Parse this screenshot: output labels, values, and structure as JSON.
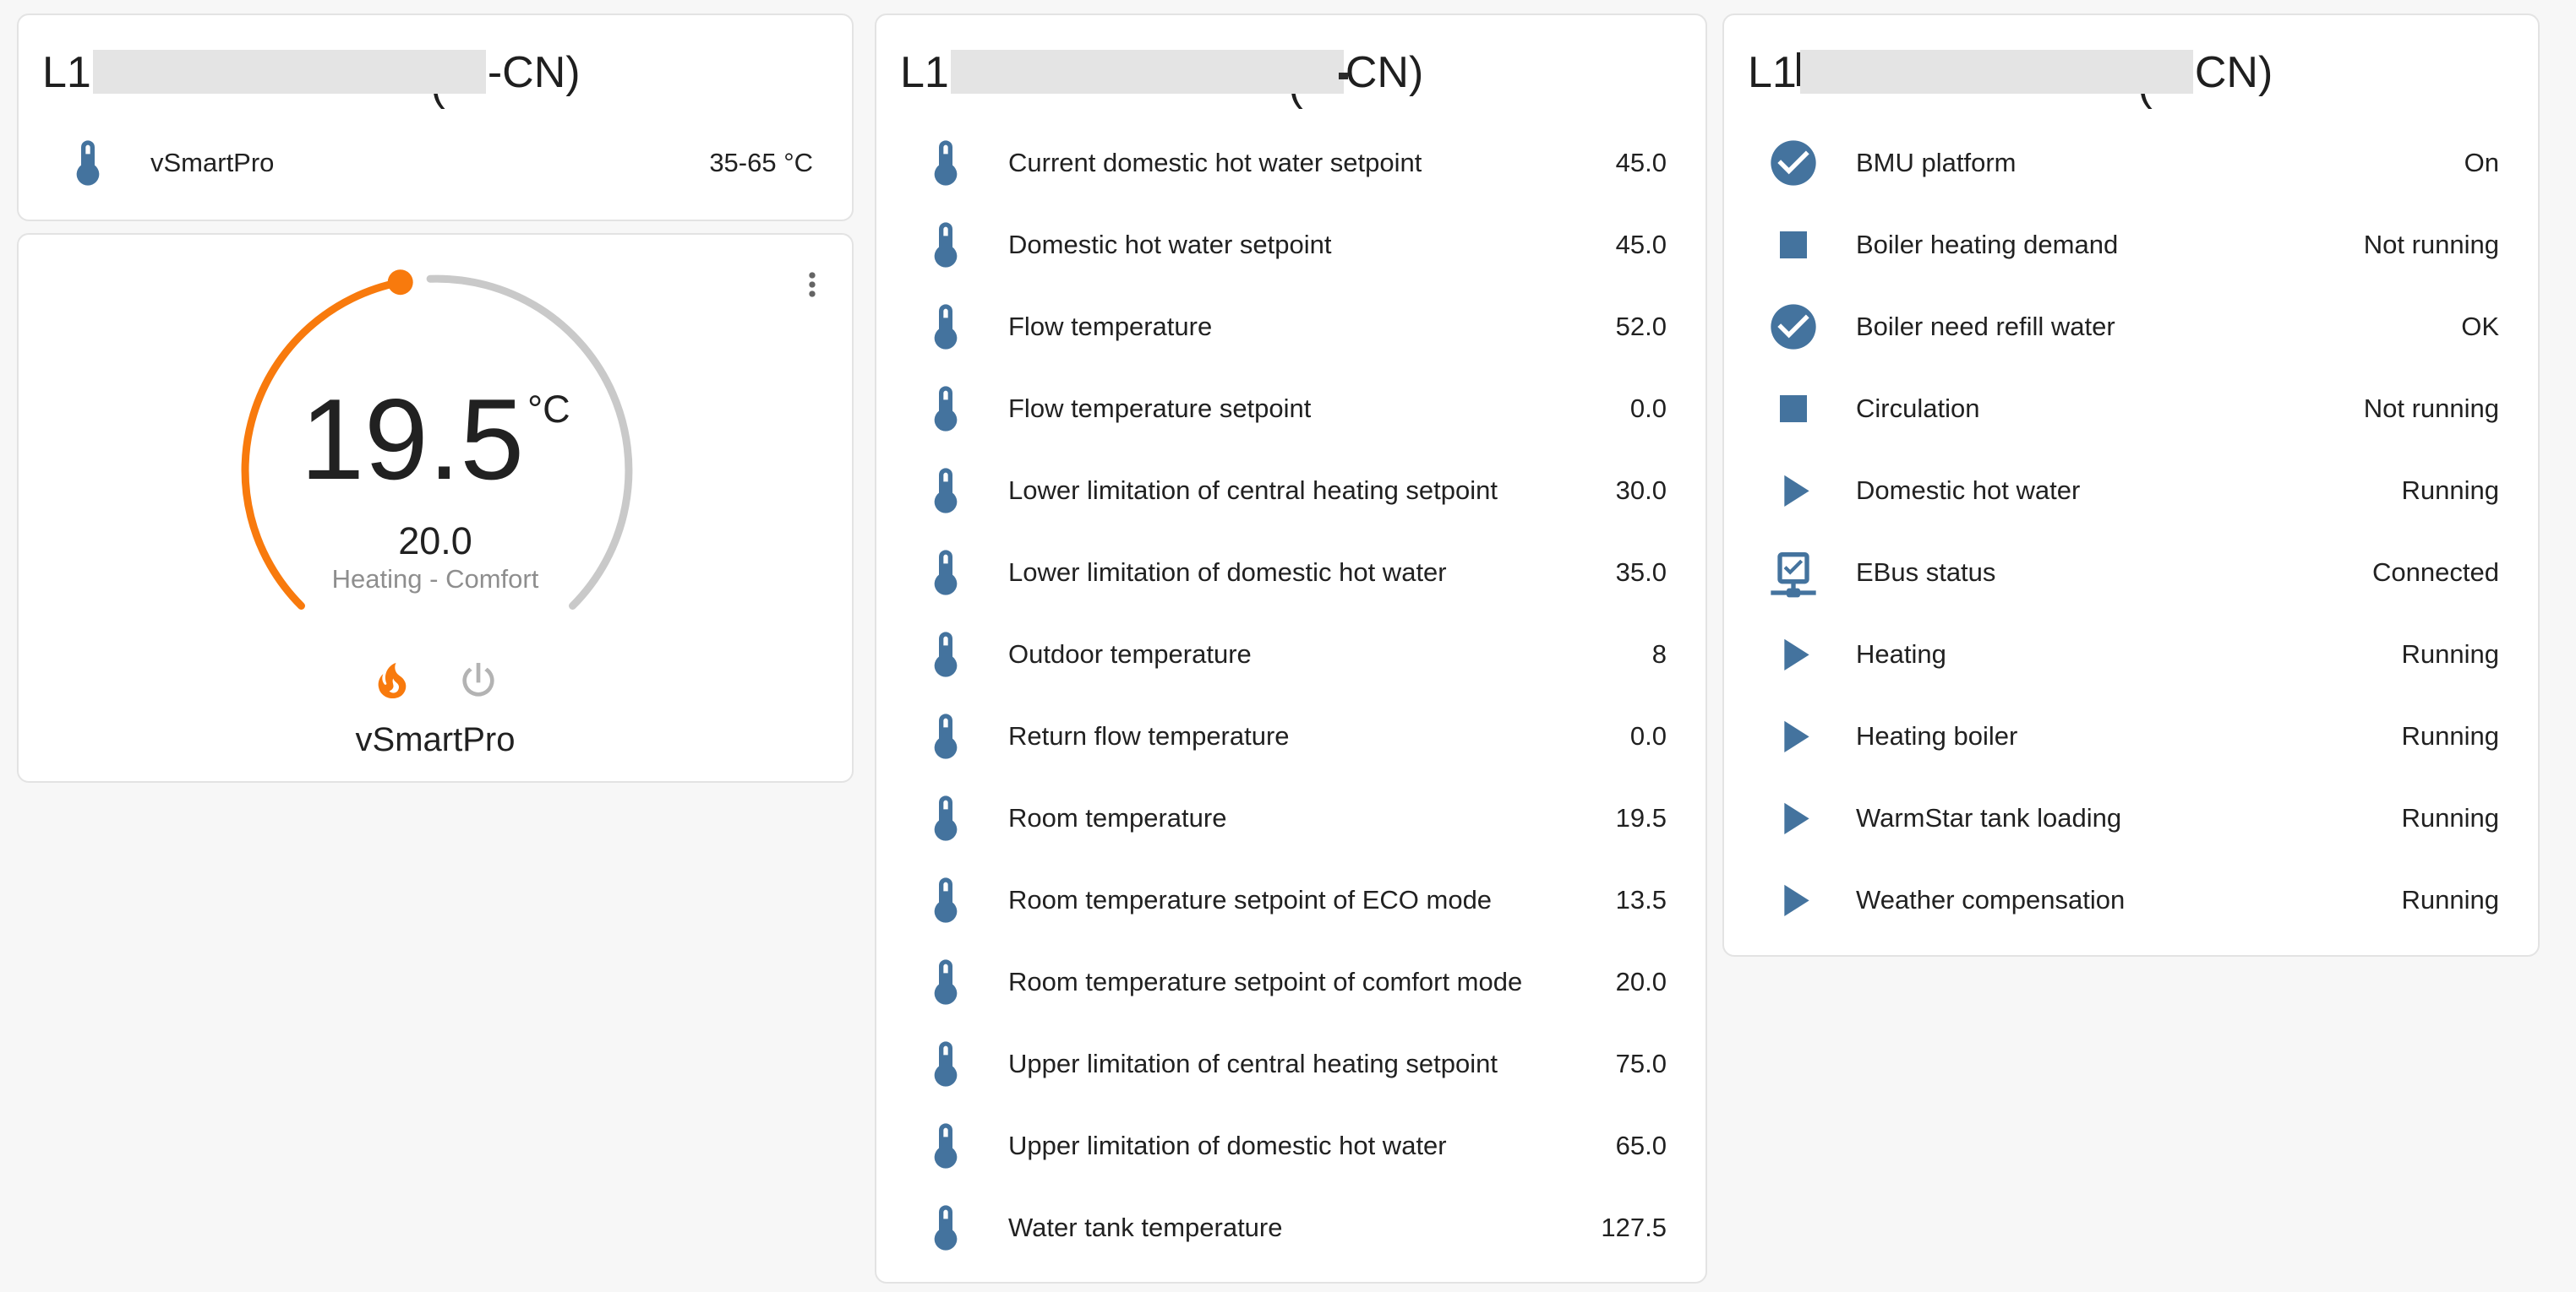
{
  "page": {
    "background": "#f7f7f7"
  },
  "colors": {
    "accent_orange": "#f87a0d",
    "icon_blue": "#44739e",
    "dial_track_gray": "#c9c9c9",
    "inactive_gray": "#b3b3b3",
    "secondary_text_gray": "#8e8e8e",
    "redaction_gray": "#e4e4e4"
  },
  "cards": {
    "summary": {
      "title_prefix": "L1",
      "title_paren": "(",
      "title_suffix": "-CN)",
      "title_redacted": true,
      "rows": [
        {
          "icon": "thermometer-icon",
          "label": "vSmartPro",
          "value": "35-65 °C"
        }
      ]
    },
    "thermostat": {
      "menu_icon": "dots-vertical-icon",
      "current_temperature": "19.5",
      "unit": "°C",
      "target_temperature": "20.0",
      "status": "Heating - Comfort",
      "entity_name": "vSmartPro",
      "modes": [
        {
          "icon": "fire-icon",
          "active": true
        },
        {
          "icon": "power-icon",
          "active": false
        }
      ]
    },
    "sensors": {
      "title_prefix": "L1",
      "title_paren": "(",
      "title_suffix": "CN)",
      "title_redacted": true,
      "rows": [
        {
          "icon": "thermometer-icon",
          "label": "Current domestic hot water setpoint",
          "value": "45.0"
        },
        {
          "icon": "thermometer-icon",
          "label": "Domestic hot water setpoint",
          "value": "45.0"
        },
        {
          "icon": "thermometer-icon",
          "label": "Flow temperature",
          "value": "52.0"
        },
        {
          "icon": "thermometer-icon",
          "label": "Flow temperature setpoint",
          "value": "0.0"
        },
        {
          "icon": "thermometer-icon",
          "label": "Lower limitation of central heating setpoint",
          "value": "30.0"
        },
        {
          "icon": "thermometer-icon",
          "label": "Lower limitation of domestic hot water",
          "value": "35.0"
        },
        {
          "icon": "thermometer-icon",
          "label": "Outdoor temperature",
          "value": "8"
        },
        {
          "icon": "thermometer-icon",
          "label": "Return flow temperature",
          "value": "0.0"
        },
        {
          "icon": "thermometer-icon",
          "label": "Room temperature",
          "value": "19.5"
        },
        {
          "icon": "thermometer-icon",
          "label": "Room temperature setpoint of ECO mode",
          "value": "13.5"
        },
        {
          "icon": "thermometer-icon",
          "label": "Room temperature setpoint of comfort mode",
          "value": "20.0"
        },
        {
          "icon": "thermometer-icon",
          "label": "Upper limitation of central heating setpoint",
          "value": "75.0"
        },
        {
          "icon": "thermometer-icon",
          "label": "Upper limitation of domestic hot water",
          "value": "65.0"
        },
        {
          "icon": "thermometer-icon",
          "label": "Water tank temperature",
          "value": "127.5"
        }
      ]
    },
    "binary_sensors": {
      "title_prefix": "L1",
      "title_paren": "(",
      "title_suffix": "CN)",
      "title_redacted": true,
      "rows": [
        {
          "icon": "check-circle-icon",
          "label": "BMU platform",
          "value": "On"
        },
        {
          "icon": "stop-icon",
          "label": "Boiler heating demand",
          "value": "Not running"
        },
        {
          "icon": "check-circle-icon",
          "label": "Boiler need refill water",
          "value": "OK"
        },
        {
          "icon": "stop-icon",
          "label": "Circulation",
          "value": "Not running"
        },
        {
          "icon": "play-icon",
          "label": "Domestic hot water",
          "value": "Running"
        },
        {
          "icon": "check-network-icon",
          "label": "EBus status",
          "value": "Connected"
        },
        {
          "icon": "play-icon",
          "label": "Heating",
          "value": "Running"
        },
        {
          "icon": "play-icon",
          "label": "Heating boiler",
          "value": "Running"
        },
        {
          "icon": "play-icon",
          "label": "WarmStar tank loading",
          "value": "Running"
        },
        {
          "icon": "play-icon",
          "label": "Weather compensation",
          "value": "Running"
        }
      ]
    }
  }
}
